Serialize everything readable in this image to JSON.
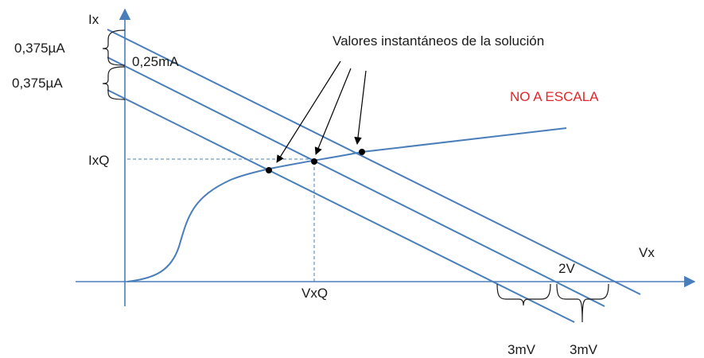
{
  "diagram": {
    "y_axis_label": "Ix",
    "x_axis_label": "Vx",
    "iq_label": "IxQ",
    "vq_label": "VxQ",
    "delta_upper_label": "0,375µA",
    "delta_lower_label": "0,375µA",
    "current_label": "0,25mA",
    "annotation_label": "Valores instantáneos de la solución",
    "scale_note": "NO A ESCALA",
    "intercept_label": "2V",
    "delta_v_left_label": "3mV",
    "delta_v_right_label": "3mV",
    "colors": {
      "line": "#4a7ebb",
      "text": "#1a1a1a",
      "note": "#e0262a",
      "points": "#000000"
    }
  }
}
